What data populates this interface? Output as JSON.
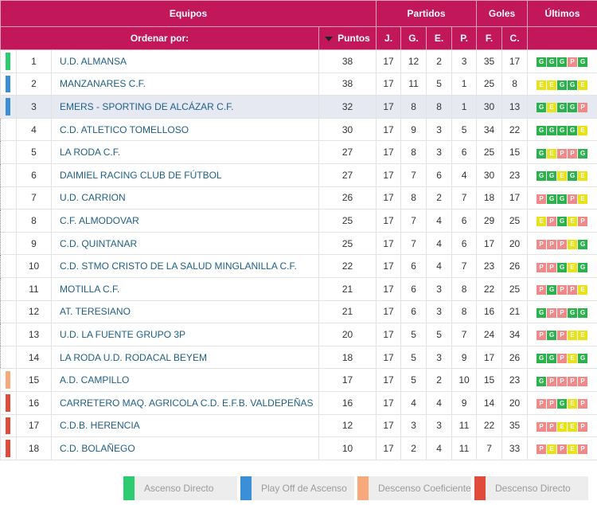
{
  "header": {
    "equipos": "Equipos",
    "partidos": "Partidos",
    "goles": "Goles",
    "ultimos": "Últimos",
    "ordenar": "Ordenar por:",
    "puntos": "Puntos",
    "j": "J.",
    "g": "G.",
    "e": "E.",
    "p": "P.",
    "f": "F.",
    "c": "C."
  },
  "legend": [
    {
      "label": "Ascenso Directo",
      "color": "#2ecc71"
    },
    {
      "label": "Play Off de Ascenso",
      "color": "#3a8fd6"
    },
    {
      "label": "Descenso Coeficiente",
      "color": "#f7a97c"
    },
    {
      "label": "Descenso Directo",
      "color": "#e04b3c"
    }
  ],
  "results_colors": {
    "G": "#2bb24c",
    "E": "#e6e31a",
    "P": "#f08a8a"
  },
  "rows": [
    {
      "pos": 1,
      "team": "U.D. ALMANSA",
      "pts": 38,
      "j": 17,
      "g": 12,
      "e": 2,
      "p": 3,
      "f": 35,
      "c": 17,
      "zone": 0,
      "last": [
        "G",
        "G",
        "G",
        "P",
        "G"
      ]
    },
    {
      "pos": 2,
      "team": "MANZANARES C.F.",
      "pts": 38,
      "j": 17,
      "g": 11,
      "e": 5,
      "p": 1,
      "f": 25,
      "c": 8,
      "zone": 1,
      "last": [
        "E",
        "E",
        "G",
        "G",
        "E"
      ]
    },
    {
      "pos": 3,
      "team": "EMERS - SPORTING DE ALCÁZAR C.F.",
      "pts": 32,
      "j": 17,
      "g": 8,
      "e": 8,
      "p": 1,
      "f": 30,
      "c": 13,
      "zone": 1,
      "highlight": true,
      "last": [
        "G",
        "E",
        "G",
        "G",
        "P"
      ]
    },
    {
      "pos": 4,
      "team": "C.D. ATLETICO TOMELLOSO",
      "pts": 30,
      "j": 17,
      "g": 9,
      "e": 3,
      "p": 5,
      "f": 34,
      "c": 22,
      "zone": null,
      "last": [
        "G",
        "G",
        "G",
        "G",
        "E"
      ]
    },
    {
      "pos": 5,
      "team": "LA RODA C.F.",
      "pts": 27,
      "j": 17,
      "g": 8,
      "e": 3,
      "p": 6,
      "f": 25,
      "c": 15,
      "zone": null,
      "last": [
        "G",
        "E",
        "P",
        "P",
        "G"
      ]
    },
    {
      "pos": 6,
      "team": "DAIMIEL RACING CLUB DE FÚTBOL",
      "pts": 27,
      "j": 17,
      "g": 7,
      "e": 6,
      "p": 4,
      "f": 30,
      "c": 23,
      "zone": null,
      "last": [
        "G",
        "G",
        "E",
        "G",
        "E"
      ]
    },
    {
      "pos": 7,
      "team": "U.D. CARRION",
      "pts": 26,
      "j": 17,
      "g": 8,
      "e": 2,
      "p": 7,
      "f": 18,
      "c": 17,
      "zone": null,
      "last": [
        "P",
        "G",
        "G",
        "P",
        "E"
      ]
    },
    {
      "pos": 8,
      "team": "C.F. ALMODOVAR",
      "pts": 25,
      "j": 17,
      "g": 7,
      "e": 4,
      "p": 6,
      "f": 29,
      "c": 25,
      "zone": null,
      "last": [
        "E",
        "P",
        "G",
        "E",
        "P"
      ]
    },
    {
      "pos": 9,
      "team": "C.D. QUINTANAR",
      "pts": 25,
      "j": 17,
      "g": 7,
      "e": 4,
      "p": 6,
      "f": 17,
      "c": 20,
      "zone": null,
      "last": [
        "P",
        "P",
        "P",
        "E",
        "G"
      ]
    },
    {
      "pos": 10,
      "team": "C.D. STMO CRISTO DE LA SALUD MINGLANILLA C.F.",
      "pts": 22,
      "j": 17,
      "g": 6,
      "e": 4,
      "p": 7,
      "f": 23,
      "c": 26,
      "zone": null,
      "last": [
        "P",
        "P",
        "G",
        "E",
        "G"
      ]
    },
    {
      "pos": 11,
      "team": "MOTILLA C.F.",
      "pts": 21,
      "j": 17,
      "g": 6,
      "e": 3,
      "p": 8,
      "f": 22,
      "c": 25,
      "zone": null,
      "last": [
        "P",
        "G",
        "P",
        "P",
        "E"
      ]
    },
    {
      "pos": 12,
      "team": "AT. TERESIANO",
      "pts": 21,
      "j": 17,
      "g": 6,
      "e": 3,
      "p": 8,
      "f": 16,
      "c": 21,
      "zone": null,
      "last": [
        "G",
        "P",
        "P",
        "G",
        "G"
      ]
    },
    {
      "pos": 13,
      "team": "U.D. LA FUENTE GRUPO 3P",
      "pts": 20,
      "j": 17,
      "g": 5,
      "e": 5,
      "p": 7,
      "f": 24,
      "c": 34,
      "zone": null,
      "last": [
        "P",
        "G",
        "P",
        "E",
        "E"
      ]
    },
    {
      "pos": 14,
      "team": "LA RODA U.D. RODACAL BEYEM",
      "pts": 18,
      "j": 17,
      "g": 5,
      "e": 3,
      "p": 9,
      "f": 17,
      "c": 26,
      "zone": null,
      "last": [
        "G",
        "G",
        "P",
        "E",
        "G"
      ]
    },
    {
      "pos": 15,
      "team": "A.D. CAMPILLO",
      "pts": 17,
      "j": 17,
      "g": 5,
      "e": 2,
      "p": 10,
      "f": 15,
      "c": 23,
      "zone": 2,
      "last": [
        "G",
        "P",
        "P",
        "P",
        "P"
      ]
    },
    {
      "pos": 16,
      "team": "CARRETERO MAQ. AGRICOLA C.D. E.F.B. VALDEPEÑAS",
      "pts": 16,
      "j": 17,
      "g": 4,
      "e": 4,
      "p": 9,
      "f": 14,
      "c": 20,
      "zone": 3,
      "last": [
        "P",
        "P",
        "G",
        "E",
        "P"
      ]
    },
    {
      "pos": 17,
      "team": "C.D.B. HERENCIA",
      "pts": 12,
      "j": 17,
      "g": 3,
      "e": 3,
      "p": 11,
      "f": 22,
      "c": 35,
      "zone": 3,
      "last": [
        "P",
        "P",
        "E",
        "E",
        "P"
      ]
    },
    {
      "pos": 18,
      "team": "C.D. BOLAÑEGO",
      "pts": 10,
      "j": 17,
      "g": 2,
      "e": 4,
      "p": 11,
      "f": 7,
      "c": 33,
      "zone": 3,
      "last": [
        "P",
        "E",
        "P",
        "E",
        "P"
      ]
    }
  ]
}
